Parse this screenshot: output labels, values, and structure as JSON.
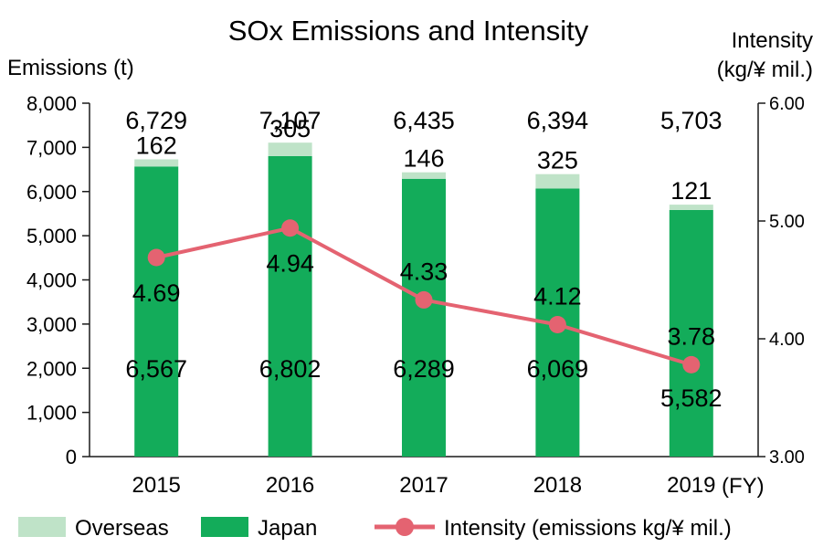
{
  "colors": {
    "japan": "#13ac5a",
    "overseas": "#bfe3c8",
    "intensity": "#e46371",
    "axis": "#1a1a1a"
  },
  "chart_data": {
    "type": "bar",
    "title": "SOx Emissions and Intensity",
    "ylabel": "Emissions (t)",
    "y2label_line1": "Intensity",
    "y2label_line2": "(kg/¥ mil.)",
    "xunit": "(FY)",
    "categories": [
      "2015",
      "2016",
      "2017",
      "2018",
      "2019"
    ],
    "ylim": [
      0,
      8000
    ],
    "y_ticks": [
      "0",
      "1,000",
      "2,000",
      "3,000",
      "4,000",
      "5,000",
      "6,000",
      "7,000",
      "8,000"
    ],
    "y2lim": [
      3.0,
      6.0
    ],
    "y2_ticks": [
      "3.00",
      "4.00",
      "5.00",
      "6.00"
    ],
    "stacked": true,
    "series": [
      {
        "name": "Japan",
        "kind": "bar",
        "values": [
          6567,
          6802,
          6289,
          6069,
          5582
        ],
        "labels": [
          "6,567",
          "6,802",
          "6,289",
          "6,069",
          "5,582"
        ]
      },
      {
        "name": "Overseas",
        "kind": "bar",
        "values": [
          162,
          305,
          146,
          325,
          121
        ],
        "labels": [
          "162",
          "305",
          "146",
          "325",
          "121"
        ]
      },
      {
        "name": "Intensity (emissions kg/¥ mil.)",
        "kind": "line",
        "axis": "right",
        "values": [
          4.69,
          4.94,
          4.33,
          4.12,
          3.78
        ],
        "labels": [
          "4.69",
          "4.94",
          "4.33",
          "4.12",
          "3.78"
        ]
      }
    ],
    "totals": [
      "6,729",
      "7,107",
      "6,435",
      "6,394",
      "5,703"
    ],
    "legend": {
      "placement": "bottom",
      "items": [
        "Overseas",
        "Japan",
        "Intensity (emissions kg/¥ mil.)"
      ]
    }
  }
}
